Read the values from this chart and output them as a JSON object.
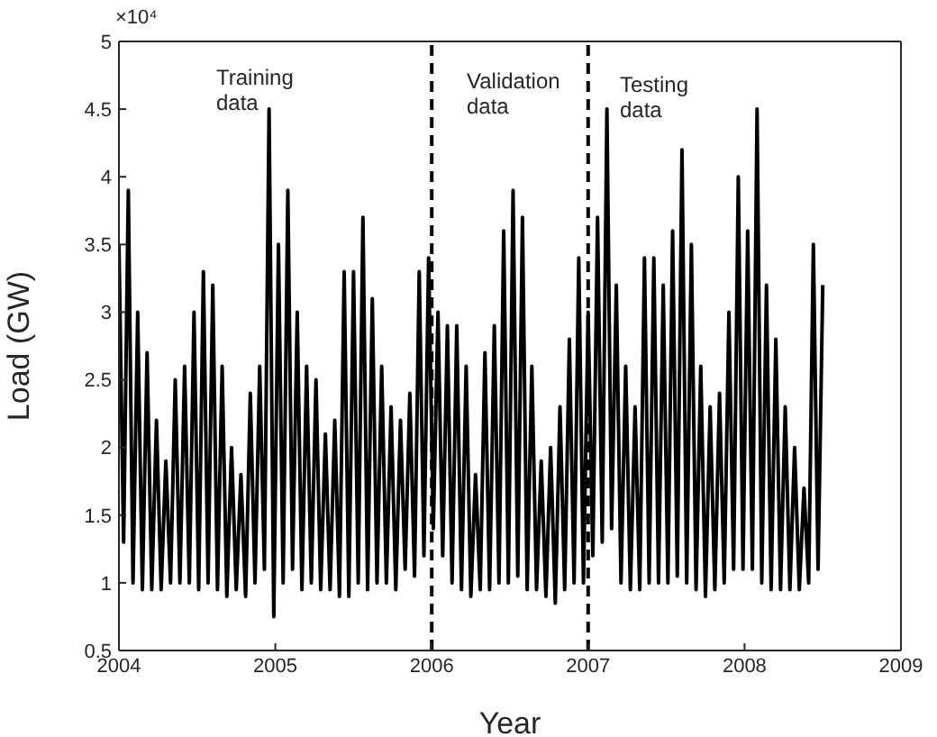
{
  "chart_data": {
    "type": "line",
    "xlabel": "Year",
    "ylabel": "Load (GW)",
    "annotations": [
      "×10⁴",
      "Training data",
      "Validation data",
      "Testing data"
    ],
    "xlim": [
      2004,
      2009
    ],
    "xticks": [
      2004,
      2005,
      2006,
      2007,
      2008,
      2009
    ],
    "ylim": [
      0.5,
      5
    ],
    "yticks": [
      0.5,
      1,
      1.5,
      2,
      2.5,
      3,
      3.5,
      4,
      4.5,
      5
    ],
    "grid": false,
    "legend": false,
    "marker": "none",
    "line_style": "solid",
    "ref_lines": [
      {
        "axis": "x",
        "value": 2006,
        "color": "#000000",
        "line_style": "dashed"
      },
      {
        "axis": "x",
        "value": 2007,
        "color": "#000000",
        "line_style": "dashed"
      }
    ],
    "series": [
      {
        "color": "#000000",
        "x": [
          2004.0,
          2004.03,
          2004.06,
          2004.09,
          2004.12,
          2004.15,
          2004.18,
          2004.21,
          2004.24,
          2004.27,
          2004.3,
          2004.33,
          2004.36,
          2004.39,
          2004.42,
          2004.45,
          2004.48,
          2004.51,
          2004.54,
          2004.57,
          2004.6,
          2004.63,
          2004.66,
          2004.69,
          2004.72,
          2004.75,
          2004.78,
          2004.81,
          2004.84,
          2004.87,
          2004.9,
          2004.93,
          2004.96,
          2004.99,
          2005.02,
          2005.05,
          2005.08,
          2005.11,
          2005.14,
          2005.17,
          2005.2,
          2005.23,
          2005.26,
          2005.29,
          2005.32,
          2005.35,
          2005.38,
          2005.41,
          2005.44,
          2005.47,
          2005.5,
          2005.53,
          2005.56,
          2005.59,
          2005.62,
          2005.65,
          2005.68,
          2005.71,
          2005.74,
          2005.77,
          2005.8,
          2005.83,
          2005.86,
          2005.89,
          2005.92,
          2005.95,
          2005.98,
          2006.01,
          2006.04,
          2006.07,
          2006.1,
          2006.13,
          2006.16,
          2006.19,
          2006.22,
          2006.25,
          2006.28,
          2006.31,
          2006.34,
          2006.37,
          2006.4,
          2006.43,
          2006.46,
          2006.49,
          2006.52,
          2006.55,
          2006.58,
          2006.61,
          2006.64,
          2006.67,
          2006.7,
          2006.73,
          2006.76,
          2006.79,
          2006.82,
          2006.85,
          2006.88,
          2006.91,
          2006.94,
          2006.97,
          2007.0,
          2007.03,
          2007.06,
          2007.09,
          2007.12,
          2007.15,
          2007.18,
          2007.21,
          2007.24,
          2007.27,
          2007.3,
          2007.33,
          2007.36,
          2007.39,
          2007.42,
          2007.45,
          2007.48,
          2007.51,
          2007.54,
          2007.57,
          2007.6,
          2007.63,
          2007.66,
          2007.69,
          2007.72,
          2007.75,
          2007.78,
          2007.81,
          2007.84,
          2007.87,
          2007.9,
          2007.93,
          2007.96,
          2007.99,
          2008.02,
          2008.05,
          2008.08,
          2008.11,
          2008.14,
          2008.17,
          2008.2,
          2008.23,
          2008.26,
          2008.29,
          2008.32,
          2008.35,
          2008.38,
          2008.41,
          2008.44,
          2008.47,
          2008.5
        ],
        "values": [
          3.5,
          1.3,
          3.9,
          1.0,
          3.0,
          0.95,
          2.7,
          0.95,
          2.2,
          0.95,
          1.9,
          1.0,
          2.5,
          1.0,
          2.6,
          1.0,
          3.0,
          0.95,
          3.3,
          1.0,
          3.2,
          0.95,
          2.6,
          0.9,
          2.0,
          0.95,
          1.8,
          0.9,
          2.4,
          1.0,
          2.6,
          1.1,
          4.5,
          0.75,
          3.5,
          1.0,
          3.9,
          1.1,
          3.0,
          0.95,
          2.6,
          1.0,
          2.5,
          0.95,
          2.1,
          0.95,
          2.2,
          0.9,
          3.3,
          0.9,
          3.3,
          1.0,
          3.7,
          0.95,
          3.1,
          1.0,
          2.6,
          1.0,
          2.3,
          0.95,
          2.2,
          1.1,
          2.4,
          1.05,
          3.3,
          1.2,
          3.4,
          1.4,
          3.0,
          1.2,
          2.9,
          1.0,
          2.9,
          0.95,
          2.6,
          0.9,
          1.8,
          0.95,
          2.7,
          0.95,
          2.9,
          1.0,
          3.6,
          1.0,
          3.9,
          1.05,
          3.7,
          0.95,
          2.6,
          0.95,
          1.9,
          0.9,
          2.0,
          0.85,
          2.3,
          0.95,
          2.8,
          1.0,
          3.4,
          1.0,
          3.0,
          1.2,
          3.7,
          1.3,
          4.5,
          1.4,
          3.2,
          1.0,
          2.6,
          0.95,
          2.3,
          0.95,
          3.4,
          1.0,
          3.4,
          1.0,
          3.2,
          1.0,
          3.6,
          1.05,
          4.2,
          1.0,
          3.5,
          0.95,
          2.6,
          0.9,
          2.3,
          0.95,
          2.4,
          1.0,
          3.0,
          1.1,
          4.0,
          1.1,
          3.6,
          1.1,
          4.5,
          1.0,
          3.2,
          0.95,
          2.8,
          0.95,
          2.3,
          0.95,
          2.0,
          0.95,
          1.7,
          1.0,
          3.5,
          1.1,
          3.2
        ]
      }
    ]
  }
}
